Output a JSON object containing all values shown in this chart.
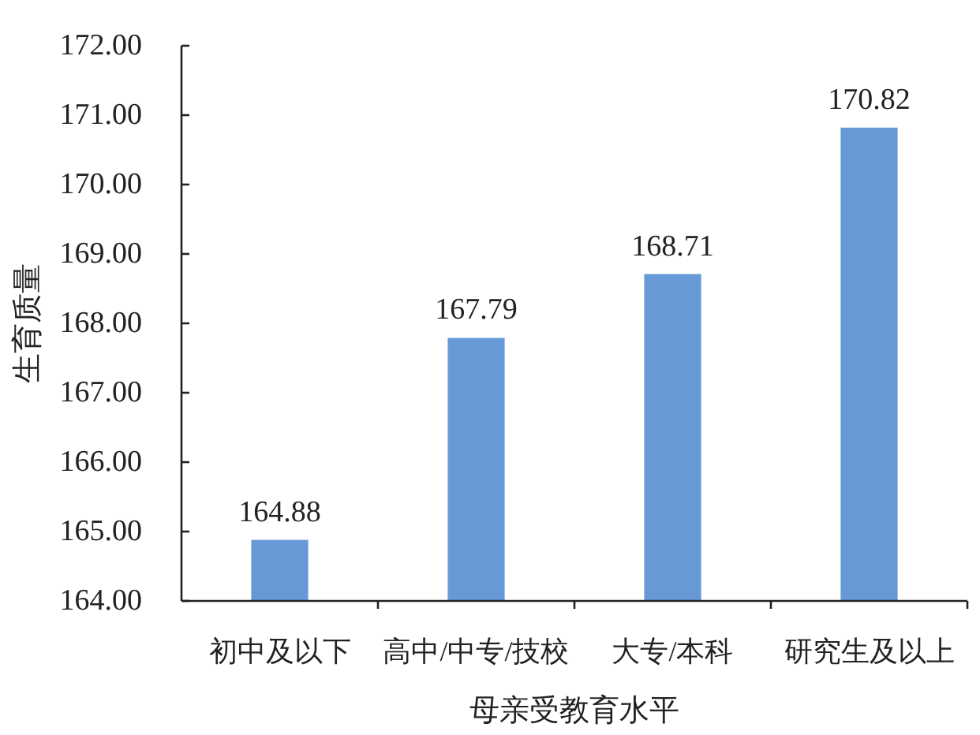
{
  "chart_data": {
    "type": "bar",
    "xlabel": "母亲受教育水平",
    "ylabel": "生育质量",
    "categories": [
      "初中及以下",
      "高中/中专/技校",
      "大专/本科",
      "研究生及以上"
    ],
    "values": [
      164.88,
      167.79,
      168.71,
      170.82
    ],
    "color": "#6699d6",
    "ylim": [
      164,
      172
    ],
    "yticks": [
      {
        "value": 164,
        "label": "164.00"
      },
      {
        "value": 165,
        "label": "165.00"
      },
      {
        "value": 166,
        "label": "166.00"
      },
      {
        "value": 167,
        "label": "167.00"
      },
      {
        "value": 168,
        "label": "168.00"
      },
      {
        "value": 169,
        "label": "169.00"
      },
      {
        "value": 170,
        "label": "170.00"
      },
      {
        "value": 171,
        "label": "171.00"
      },
      {
        "value": 172,
        "label": "172.00"
      }
    ],
    "data_labels": true
  }
}
